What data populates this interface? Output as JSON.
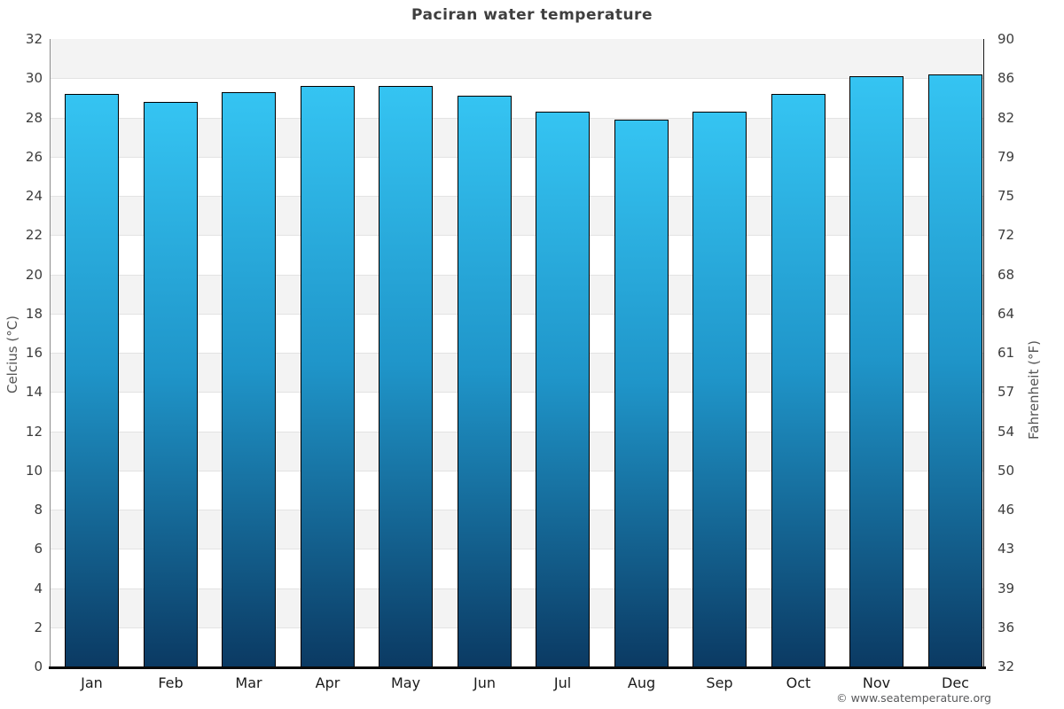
{
  "page": {
    "title": "Paciran water temperature",
    "copyright": "© www.seatemperature.org"
  },
  "chart_data": {
    "type": "bar",
    "title": "Paciran water temperature",
    "categories": [
      "Jan",
      "Feb",
      "Mar",
      "Apr",
      "May",
      "Jun",
      "Jul",
      "Aug",
      "Sep",
      "Oct",
      "Nov",
      "Dec"
    ],
    "values": [
      29.2,
      28.8,
      29.3,
      29.6,
      29.6,
      29.1,
      28.3,
      27.9,
      28.3,
      29.2,
      30.1,
      30.2
    ],
    "unit": "°C",
    "ylabel_left": "Celcius (°C)",
    "ylabel_right": "Fahrenheit (°F)",
    "ylim": [
      0,
      32
    ],
    "left_ticks": [
      32,
      30,
      28,
      26,
      24,
      22,
      20,
      18,
      16,
      14,
      12,
      10,
      8,
      6,
      4,
      2,
      0
    ],
    "right_ticks": [
      90,
      86,
      82,
      79,
      75,
      72,
      68,
      64,
      61,
      57,
      54,
      50,
      46,
      43,
      39,
      36,
      32
    ],
    "grid": "horizontal-banded",
    "legend_position": "none",
    "colors": {
      "bar_gradient_top": "#35c4f2",
      "bar_gradient_mid": "#1f95c9",
      "bar_gradient_bottom": "#0b3a63",
      "bar_border": "#000000",
      "band_shaded": "#f3f3f3",
      "band_plain": "#ffffff",
      "gridline": "#e3e3e3",
      "baseline": "#0a0a0a",
      "axis_line_left": "#8b8b8b",
      "axis_line_right": "#1a1a1a",
      "title_text": "#3f3f3f",
      "tick_text": "#3d3d3d",
      "month_text": "#1b1b1b",
      "axis_label_text": "#555555",
      "copyright_text": "#58595b"
    }
  }
}
